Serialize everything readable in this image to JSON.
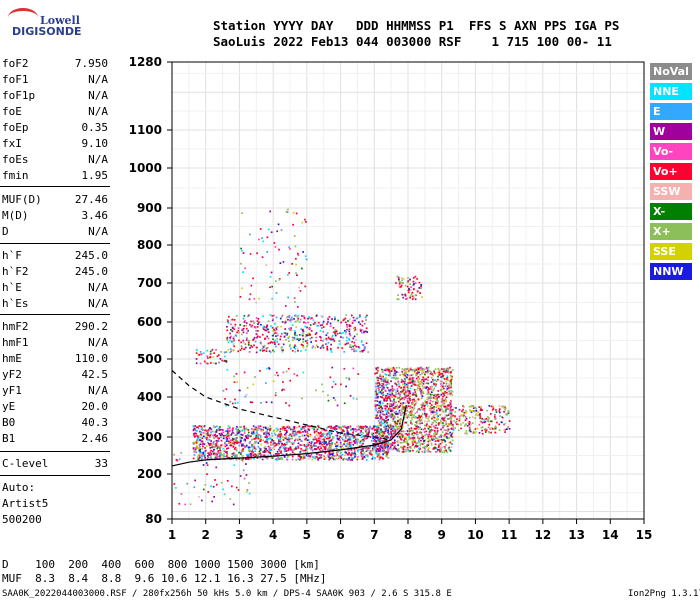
{
  "logo": {
    "line1": "Lowell",
    "line2": "DIGISONDE"
  },
  "header": {
    "row1": "Station YYYY DAY   DDD HHMMSS P1  FFS S AXN PPS IGA PS",
    "row2": "SaoLuis 2022 Feb13 044 003000 RSF    1 715 100 00- 11"
  },
  "params_group1": [
    {
      "name": "foF2",
      "value": "7.950"
    },
    {
      "name": "foF1",
      "value": "N/A"
    },
    {
      "name": "foF1p",
      "value": "N/A"
    },
    {
      "name": "foE",
      "value": "N/A"
    },
    {
      "name": "foEp",
      "value": "0.35"
    },
    {
      "name": "fxI",
      "value": "9.10"
    },
    {
      "name": "foEs",
      "value": "N/A"
    },
    {
      "name": "fmin",
      "value": "1.95"
    }
  ],
  "params_group2": [
    {
      "name": "MUF(D)",
      "value": "27.46"
    },
    {
      "name": "M(D)",
      "value": "3.46"
    },
    {
      "name": "D",
      "value": "N/A"
    }
  ],
  "params_group3": [
    {
      "name": "h`F",
      "value": "245.0"
    },
    {
      "name": "h`F2",
      "value": "245.0"
    },
    {
      "name": "h`E",
      "value": "N/A"
    },
    {
      "name": "h`Es",
      "value": "N/A"
    }
  ],
  "params_group4": [
    {
      "name": "hmF2",
      "value": "290.2"
    },
    {
      "name": "hmF1",
      "value": "N/A"
    },
    {
      "name": "hmE",
      "value": "110.0"
    },
    {
      "name": "yF2",
      "value": "42.5"
    },
    {
      "name": "yF1",
      "value": "N/A"
    },
    {
      "name": "yE",
      "value": "20.0"
    },
    {
      "name": "B0",
      "value": "40.3"
    },
    {
      "name": "B1",
      "value": "2.46"
    }
  ],
  "clevel": {
    "name": "C-level",
    "value": "33"
  },
  "auto": {
    "line1": "Auto:",
    "line2": "Artist5",
    "line3": "500200"
  },
  "legend": [
    {
      "label": "NoVal",
      "color": "#8c8c8c"
    },
    {
      "label": "NNE",
      "color": "#00e5ff"
    },
    {
      "label": "E",
      "color": "#33a8ff"
    },
    {
      "label": "W",
      "color": "#a0009c"
    },
    {
      "label": "Vo-",
      "color": "#ff44c0"
    },
    {
      "label": "Vo+",
      "color": "#ff0030"
    },
    {
      "label": "SSW",
      "color": "#f5b0b0"
    },
    {
      "label": "X-",
      "color": "#008000"
    },
    {
      "label": "X+",
      "color": "#8cbe5a"
    },
    {
      "label": "SSE",
      "color": "#d2d200"
    },
    {
      "label": "NNW",
      "color": "#1a1ae0"
    }
  ],
  "footer": {
    "d_row": "D    100  200  400  600  800 1000 1500 3000 [km]",
    "muf_row": "MUF  8.3  8.4  8.8  9.6 10.6 12.1 16.3 27.5 [MHz]",
    "file_info": "SAA0K_2022044003000.RSF / 280fx256h 50 kHs 5.0 km / DPS-4 SAA0K 903 / 2.6 S 315.8 E",
    "version": "Ion2Png 1.3.17"
  },
  "chart_data": {
    "type": "scatter",
    "x_ticks": [
      "1",
      "2",
      "3",
      "4",
      "5",
      "6",
      "7",
      "8",
      "9",
      "10",
      "11",
      "12",
      "13",
      "14",
      "15"
    ],
    "y_ticks": [
      "80",
      "200",
      "300",
      "400",
      "500",
      "600",
      "700",
      "800",
      "900",
      "1000",
      "1100",
      "1280"
    ],
    "xlim": [
      1,
      15
    ],
    "ylim": [
      80,
      1280
    ],
    "y_scale": "nonlinear",
    "grid": true,
    "traces": [
      {
        "name": "",
        "style": "solid",
        "x": [
          1.0,
          1.5,
          2.0,
          3.0,
          4.0,
          5.0,
          6.0,
          7.0,
          7.5,
          7.8,
          7.95
        ],
        "y": [
          222,
          232,
          238,
          243,
          248,
          255,
          265,
          278,
          292,
          320,
          380
        ]
      },
      {
        "name": "",
        "style": "dashed",
        "x": [
          1.0,
          1.5,
          2.0,
          3.0,
          4.0,
          5.0,
          6.0,
          7.0,
          7.5
        ],
        "y": [
          470,
          430,
          400,
          370,
          350,
          330,
          310,
          300,
          292
        ]
      }
    ],
    "echo_clusters": [
      {
        "x": [
          1.6,
          7.4
        ],
        "y": [
          240,
          330
        ],
        "density": 1.0
      },
      {
        "x": [
          7.0,
          9.3
        ],
        "y": [
          260,
          480
        ],
        "density": 1.0
      },
      {
        "x": [
          9.3,
          11.0
        ],
        "y": [
          310,
          380
        ],
        "density": 0.5
      },
      {
        "x": [
          2.6,
          6.8
        ],
        "y": [
          520,
          620
        ],
        "density": 0.4
      },
      {
        "x": [
          1.7,
          2.6
        ],
        "y": [
          490,
          530
        ],
        "density": 0.4
      },
      {
        "x": [
          7.6,
          8.4
        ],
        "y": [
          660,
          720
        ],
        "density": 0.5
      },
      {
        "x": [
          3.0,
          5.0
        ],
        "y": [
          640,
          900
        ],
        "density": 0.05
      },
      {
        "x": [
          1.0,
          3.6
        ],
        "y": [
          120,
          260
        ],
        "density": 0.05
      },
      {
        "x": [
          2.5,
          6.5
        ],
        "y": [
          380,
          480
        ],
        "density": 0.06
      }
    ]
  }
}
